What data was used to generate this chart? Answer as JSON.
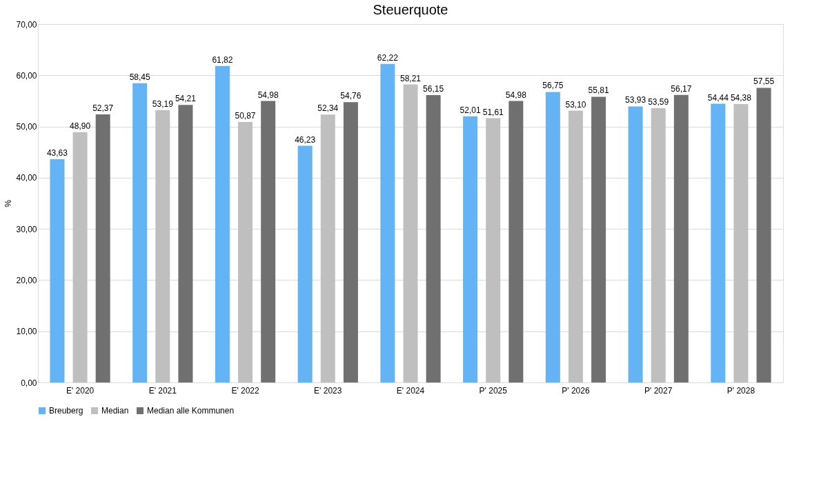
{
  "chart_data": {
    "type": "bar",
    "title": "Steuerquote",
    "ylabel": "%",
    "categories": [
      "E' 2020",
      "E' 2021",
      "E' 2022",
      "E' 2023",
      "E' 2024",
      "P' 2025",
      "P' 2026",
      "P' 2027",
      "P' 2028"
    ],
    "series": [
      {
        "name": "Breuberg",
        "color": "#63b3f5",
        "values": [
          43.63,
          58.45,
          61.82,
          46.23,
          62.22,
          52.01,
          56.75,
          53.93,
          54.44
        ],
        "value_labels": [
          "43,63",
          "58,45",
          "61,82",
          "46,23",
          "62,22",
          "52,01",
          "56,75",
          "53,93",
          "54,44"
        ]
      },
      {
        "name": "Median",
        "color": "#bfbfbf",
        "values": [
          48.9,
          53.19,
          50.87,
          52.34,
          58.21,
          51.61,
          53.1,
          53.59,
          54.38
        ],
        "value_labels": [
          "48,90",
          "53,19",
          "50,87",
          "52,34",
          "58,21",
          "51,61",
          "53,10",
          "53,59",
          "54,38"
        ]
      },
      {
        "name": "Median alle Kommunen",
        "color": "#707070",
        "values": [
          52.37,
          54.21,
          54.98,
          54.76,
          56.15,
          54.98,
          55.81,
          56.17,
          57.55
        ],
        "value_labels": [
          "52,37",
          "54,21",
          "54,98",
          "54,76",
          "56,15",
          "54,98",
          "55,81",
          "56,17",
          "57,55"
        ]
      }
    ],
    "ylim": [
      0,
      70
    ],
    "yticks": [
      {
        "value": 0,
        "label": "0,00"
      },
      {
        "value": 10,
        "label": "10,00"
      },
      {
        "value": 20,
        "label": "20,00"
      },
      {
        "value": 30,
        "label": "30,00"
      },
      {
        "value": 40,
        "label": "40,00"
      },
      {
        "value": 50,
        "label": "50,00"
      },
      {
        "value": 60,
        "label": "60,00"
      },
      {
        "value": 70,
        "label": "70,00"
      }
    ],
    "grid": "y",
    "legend": "bottom"
  }
}
